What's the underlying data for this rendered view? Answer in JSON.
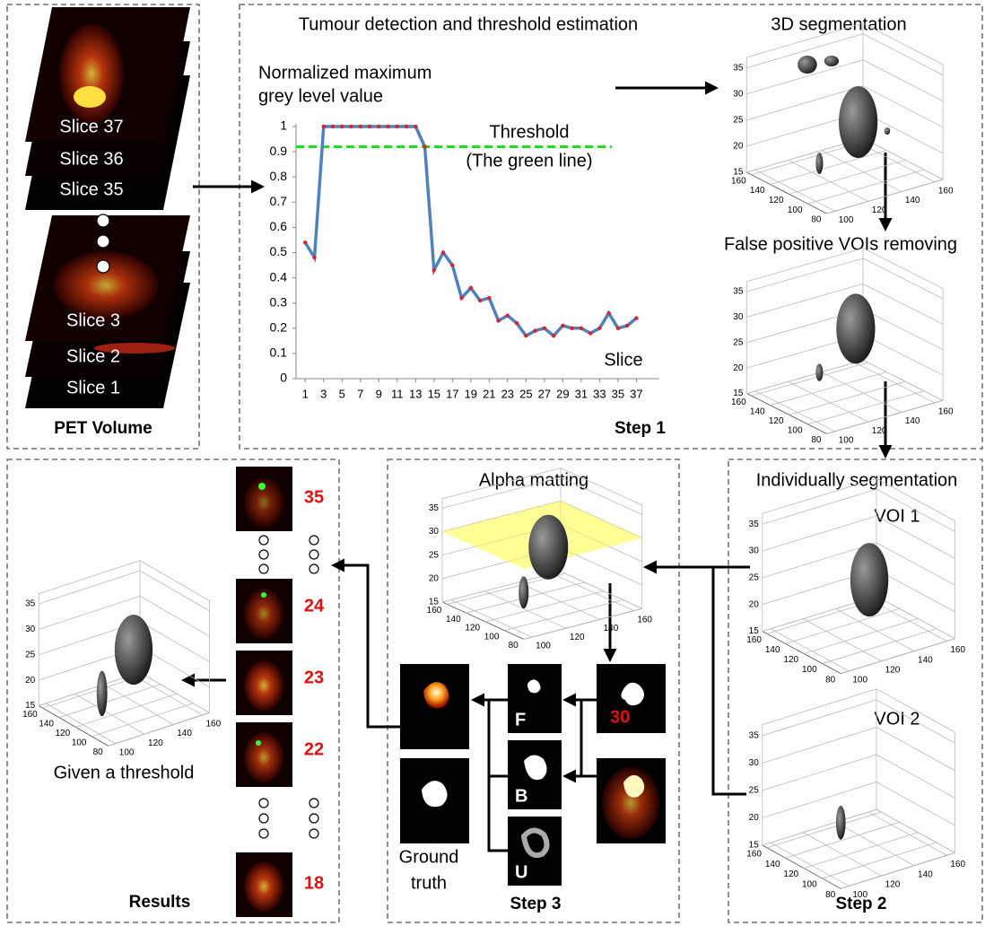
{
  "chart_data": {
    "type": "line",
    "title": "Tumour detection and threshold estimation",
    "y_label": [
      "Normalized maximum",
      "grey level value"
    ],
    "x_label": "Slice",
    "x": [
      1,
      2,
      3,
      4,
      5,
      6,
      7,
      8,
      9,
      10,
      11,
      12,
      13,
      14,
      15,
      16,
      17,
      18,
      19,
      20,
      21,
      22,
      23,
      24,
      25,
      26,
      27,
      28,
      29,
      30,
      31,
      32,
      33,
      34,
      35,
      36,
      37
    ],
    "series": [
      {
        "color": "#4f81bd",
        "marker_color": "#e0202a",
        "values": [
          0.54,
          0.48,
          1.0,
          1.0,
          1.0,
          1.0,
          1.0,
          1.0,
          1.0,
          1.0,
          1.0,
          1.0,
          1.0,
          0.92,
          0.43,
          0.5,
          0.45,
          0.32,
          0.36,
          0.31,
          0.32,
          0.23,
          0.25,
          0.22,
          0.17,
          0.19,
          0.2,
          0.17,
          0.21,
          0.2,
          0.2,
          0.18,
          0.2,
          0.26,
          0.2,
          0.21,
          0.24
        ]
      }
    ],
    "xlim": [
      0,
      39.5
    ],
    "xticks": [
      1,
      3,
      5,
      7,
      9,
      11,
      13,
      15,
      17,
      19,
      21,
      23,
      25,
      27,
      29,
      31,
      33,
      35,
      37
    ],
    "ylim": [
      0,
      1
    ],
    "yticks": [
      0,
      0.1,
      0.2,
      0.3,
      0.4,
      0.5,
      0.6,
      0.7,
      0.8,
      0.9,
      1
    ],
    "threshold": {
      "value": 0.92,
      "color": "#22dd22",
      "label": [
        "Threshold",
        "(The green line)"
      ]
    },
    "step": "Step 1"
  },
  "diagram": {
    "pet_volume": {
      "title": "PET Volume",
      "slices": [
        "Slice 37",
        "Slice 36",
        "Slice 35",
        "Slice 3",
        "Slice 2",
        "Slice 1"
      ]
    },
    "segmentation": {
      "title": "3D segmentation",
      "removing": "False positive VOIs removing"
    },
    "step2": {
      "title": "Individually segmentation",
      "voi1": "VOI 1",
      "voi2": "VOI 2",
      "step": "Step 2"
    },
    "step3": {
      "title": "Alpha matting",
      "slice": "30",
      "f": "F",
      "b": "B",
      "u": "U",
      "ground_truth": [
        "Ground",
        "truth"
      ],
      "step": "Step 3"
    },
    "results": {
      "title": "Results",
      "caption": "Given a threshold",
      "slices": [
        "35",
        "24",
        "23",
        "22",
        "18"
      ]
    },
    "plot3d": {
      "zticks": [
        15,
        20,
        25,
        30,
        35
      ],
      "zlim": [
        15,
        37
      ],
      "yticks": [
        160,
        140,
        120,
        100,
        80
      ],
      "ylim": [
        80,
        165
      ],
      "xticks": [
        100,
        120,
        140,
        160
      ],
      "xlim": [
        95,
        165
      ]
    }
  }
}
